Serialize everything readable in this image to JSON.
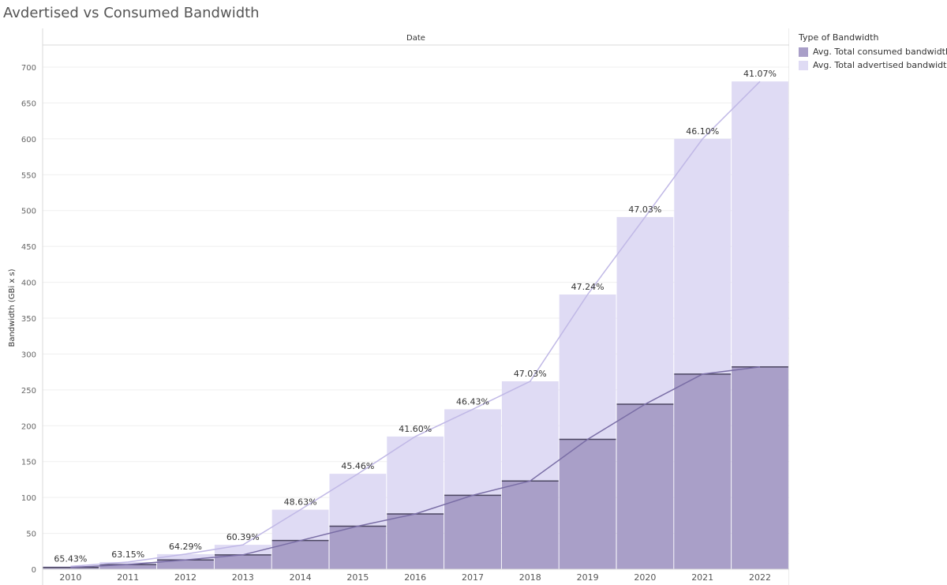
{
  "title": "Avdertised vs Consumed Bandwidth",
  "legend": {
    "title": "Type of Bandwidth",
    "items": [
      {
        "label": "Avg. Total consumed bandwidth",
        "color": "#a99fc8"
      },
      {
        "label": "Avg. Total advertised bandwidth",
        "color": "#dfdbf4"
      }
    ]
  },
  "chart_data": {
    "type": "bar",
    "header": "Date",
    "ylabel": "Bandwidth (GBi x s)",
    "ylim": [
      0,
      700
    ],
    "yticks": [
      0,
      50,
      100,
      150,
      200,
      250,
      300,
      350,
      400,
      450,
      500,
      550,
      600,
      650,
      700
    ],
    "categories": [
      "2010",
      "2011",
      "2012",
      "2013",
      "2014",
      "2015",
      "2016",
      "2017",
      "2018",
      "2019",
      "2020",
      "2021",
      "2022"
    ],
    "series": [
      {
        "name": "Avg. Total consumed bandwidth",
        "color": "#a99fc8",
        "line_color": "#7a6ea6",
        "values": [
          2.5,
          6.5,
          13,
          20,
          40,
          60,
          77,
          103,
          123,
          181,
          230,
          272,
          282
        ]
      },
      {
        "name": "Avg. Total advertised bandwidth",
        "color": "#dfdbf4",
        "line_color": "#c0b8e6",
        "values": [
          4,
          10,
          21,
          34,
          83,
          133,
          185,
          223,
          262,
          383,
          491,
          600,
          680
        ]
      }
    ],
    "pct_labels": [
      "65.43%",
      "63.15%",
      "64.29%",
      "60.39%",
      "48.63%",
      "45.46%",
      "41.60%",
      "46.43%",
      "47.03%",
      "47.24%",
      "47.03%",
      "46.10%",
      "41.07%"
    ]
  }
}
